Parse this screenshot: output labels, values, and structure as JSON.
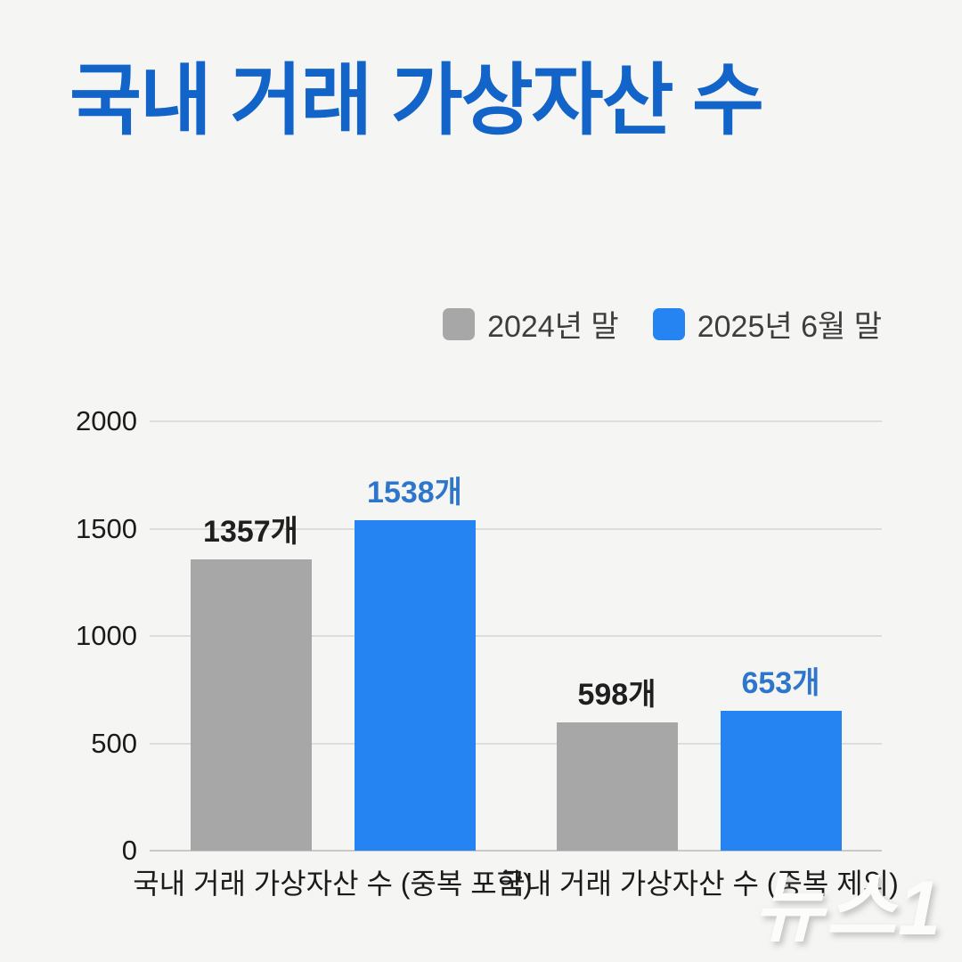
{
  "page": {
    "background_color": "#f5f5f4"
  },
  "header": {
    "title": "국내 거래 가상자산 수",
    "title_color": "#1264c8"
  },
  "legend": {
    "position": "top-right",
    "items": [
      {
        "label": "2024년 말",
        "color": "#a7a7a7"
      },
      {
        "label": "2025년 6월 말",
        "color": "#2584f2"
      }
    ]
  },
  "watermark": {
    "text": "뉴스1"
  },
  "chart_data": {
    "type": "bar",
    "title": "국내 거래 가상자산 수",
    "categories": [
      "국내 거래 가상자산 수 (중복 포함)",
      "국내 거래 가상자산 수 (중복 제외)"
    ],
    "series": [
      {
        "name": "2024년 말",
        "color": "#a7a7a7",
        "values": [
          1357,
          598
        ],
        "data_labels": [
          "1357개",
          "598개"
        ],
        "data_label_color": "#1f1f1f"
      },
      {
        "name": "2025년 6월 말",
        "color": "#2584f2",
        "values": [
          1538,
          653
        ],
        "data_labels": [
          "1538개",
          "653개"
        ],
        "data_label_color": "#2e76cb"
      }
    ],
    "xlabel": "",
    "ylabel": "",
    "ylim": [
      0,
      2000
    ],
    "yticks": [
      0,
      500,
      1000,
      1500,
      2000
    ],
    "grid": true,
    "legend_position": "top-right",
    "unit_suffix": "개"
  }
}
